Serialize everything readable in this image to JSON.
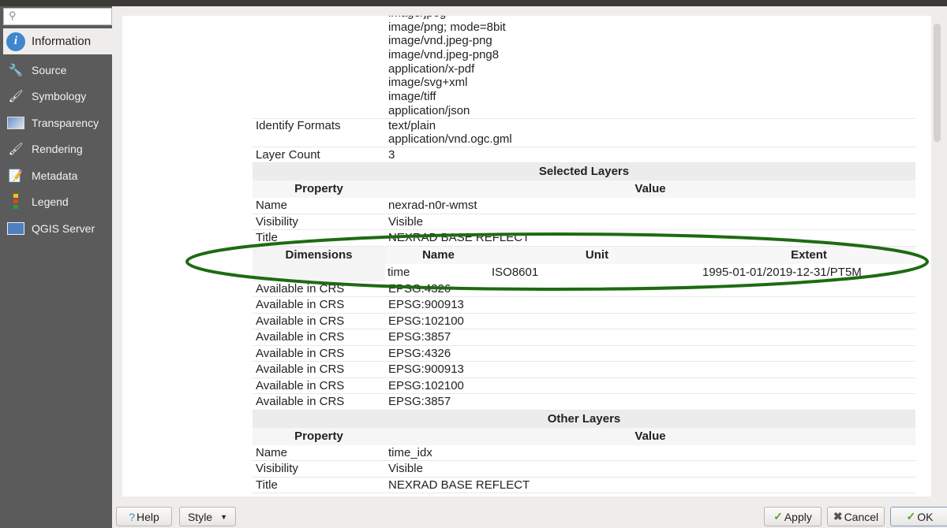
{
  "sidebar": {
    "search_placeholder": "",
    "items": [
      {
        "label": "Information",
        "icon": "info-icon"
      },
      {
        "label": "Source",
        "icon": "wrench-gear-icon"
      },
      {
        "label": "Symbology",
        "icon": "paintbrush-colors-icon"
      },
      {
        "label": "Transparency",
        "icon": "transparency-icon"
      },
      {
        "label": "Rendering",
        "icon": "brush-icon"
      },
      {
        "label": "Metadata",
        "icon": "document-pencil-icon"
      },
      {
        "label": "Legend",
        "icon": "legend-icon"
      },
      {
        "label": "QGIS Server",
        "icon": "server-map-icon"
      }
    ]
  },
  "info": {
    "formats": [
      "image/jpeg",
      "image/png; mode=8bit",
      "image/vnd.jpeg-png",
      "image/vnd.jpeg-png8",
      "application/x-pdf",
      "image/svg+xml",
      "image/tiff",
      "application/json"
    ],
    "identify_label": "Identify Formats",
    "identify": [
      "text/plain",
      "application/vnd.ogc.gml"
    ],
    "layer_count_label": "Layer Count",
    "layer_count": "3",
    "selected_header": "Selected Layers",
    "property": "Property",
    "value": "Value",
    "selected": {
      "name_label": "Name",
      "name": "nexrad-n0r-wmst",
      "vis_label": "Visibility",
      "vis": "Visible",
      "title_label": "Title",
      "title": "NEXRAD BASE REFLECT",
      "dims_label": "Dimensions",
      "dims_cols": [
        "Name",
        "Unit",
        "Extent"
      ],
      "dims_row": [
        "time",
        "ISO8601",
        "1995-01-01/2019-12-31/PT5M"
      ],
      "crs_label": "Available in CRS",
      "crs": [
        "EPSG:4326",
        "EPSG:900913",
        "EPSG:102100",
        "EPSG:3857",
        "EPSG:4326",
        "EPSG:900913",
        "EPSG:102100",
        "EPSG:3857"
      ]
    },
    "other_header": "Other Layers",
    "other": {
      "name_label": "Name",
      "name": "time_idx",
      "vis_label": "Visibility",
      "vis": "Visible",
      "title_label": "Title",
      "title": "NEXRAD BASE REFLECT"
    }
  },
  "buttons": {
    "help": "Help",
    "style": "Style",
    "apply": "Apply",
    "cancel": "Cancel",
    "ok": "OK"
  },
  "colors": {
    "annotation": "#1e6b12",
    "sidebar": "#5b5b5b"
  }
}
